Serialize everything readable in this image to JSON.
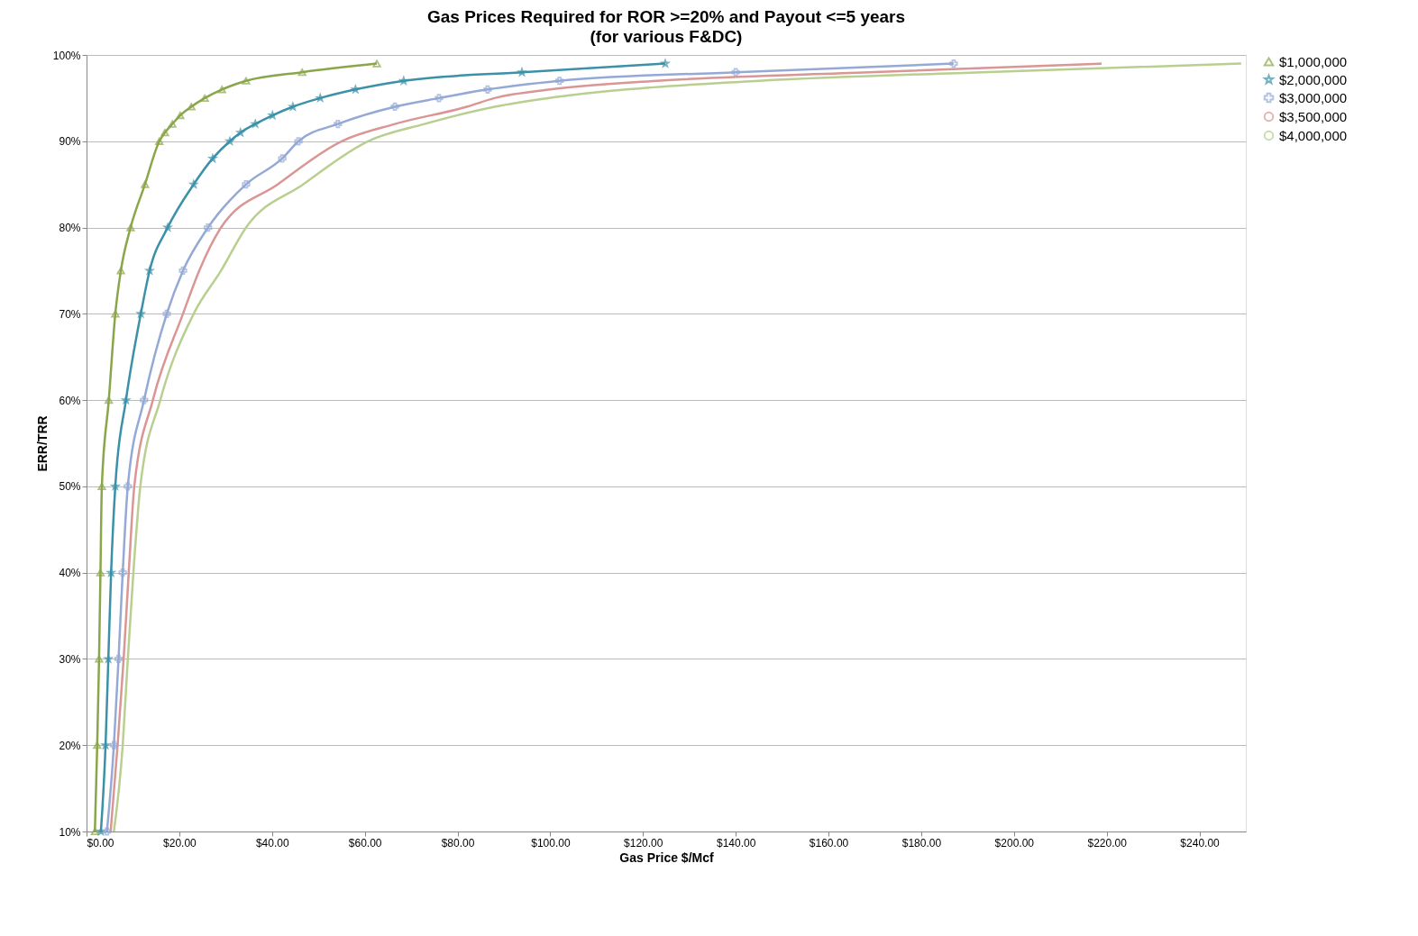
{
  "chart_data": {
    "type": "line",
    "title": "Gas Prices Required for ROR >=20% and Payout <=5 years",
    "subtitle": "(for various F&DC)",
    "xlabel": "Gas Price $/Mcf",
    "ylabel": "ERR/TRR",
    "xlim": [
      0,
      250
    ],
    "ylim": [
      10,
      100
    ],
    "xticks": [
      {
        "value": 0,
        "label": "$0.00"
      },
      {
        "value": 20,
        "label": "$20.00"
      },
      {
        "value": 40,
        "label": "$40.00"
      },
      {
        "value": 60,
        "label": "$60.00"
      },
      {
        "value": 80,
        "label": "$80.00"
      },
      {
        "value": 100,
        "label": "$100.00"
      },
      {
        "value": 120,
        "label": "$120.00"
      },
      {
        "value": 140,
        "label": "$140.00"
      },
      {
        "value": 160,
        "label": "$160.00"
      },
      {
        "value": 180,
        "label": "$180.00"
      },
      {
        "value": 200,
        "label": "$200.00"
      },
      {
        "value": 220,
        "label": "$220.00"
      },
      {
        "value": 240,
        "label": "$240.00"
      }
    ],
    "yticks": [
      {
        "value": 10,
        "label": "10%"
      },
      {
        "value": 20,
        "label": "20%"
      },
      {
        "value": 30,
        "label": "30%"
      },
      {
        "value": 40,
        "label": "40%"
      },
      {
        "value": 50,
        "label": "50%"
      },
      {
        "value": 60,
        "label": "60%"
      },
      {
        "value": 70,
        "label": "70%"
      },
      {
        "value": 80,
        "label": "80%"
      },
      {
        "value": 90,
        "label": "90%"
      },
      {
        "value": 100,
        "label": "100%"
      }
    ],
    "grid": "y",
    "legend": "right",
    "line_style": "solid",
    "series": [
      {
        "name": "$1,000,000",
        "color": "#8aa64a",
        "marker": "triangle",
        "x": [
          1.8,
          2.3,
          2.7,
          3.0,
          3.3,
          4.8,
          6.2,
          7.4,
          9.5,
          12.6,
          15.7,
          16.9,
          18.5,
          20.2,
          22.6,
          25.5,
          29.2,
          34.4,
          46.5,
          62.6
        ],
        "values": [
          10,
          20,
          30,
          40,
          50,
          60,
          70,
          75,
          80,
          85,
          90,
          91,
          92,
          93,
          94,
          95,
          96,
          97,
          98,
          99
        ]
      },
      {
        "name": "$2,000,000",
        "color": "#3a91a8",
        "marker": "star",
        "x": [
          3.1,
          4.1,
          4.7,
          5.3,
          6.2,
          8.5,
          11.7,
          13.6,
          17.5,
          23.1,
          27.2,
          30.9,
          33.2,
          36.4,
          40.1,
          44.5,
          50.4,
          58.0,
          68.4,
          93.9,
          124.8
        ],
        "values": [
          10,
          20,
          30,
          40,
          50,
          60,
          70,
          75,
          80,
          85,
          88,
          90,
          91,
          92,
          93,
          94,
          95,
          96,
          97,
          98,
          99
        ]
      },
      {
        "name": "$3,000,000",
        "color": "#95a9d6",
        "marker": "cross",
        "x": [
          4.4,
          5.9,
          6.9,
          7.8,
          8.9,
          12.4,
          17.3,
          20.8,
          26.2,
          34.4,
          42.2,
          45.7,
          54.2,
          66.5,
          76.0,
          86.5,
          102.0,
          140.0,
          187.0
        ],
        "values": [
          10,
          20,
          30,
          40,
          50,
          60,
          70,
          75,
          80,
          85,
          88,
          90,
          92,
          94,
          95,
          96,
          97,
          98,
          99
        ]
      },
      {
        "name": "$3,500,000",
        "color": "#d99694",
        "marker": "none",
        "x": [
          5.2,
          6.7,
          8.0,
          9.1,
          10.3,
          14.3,
          20.8,
          24.3,
          29.0,
          41.2,
          55.0,
          66.5,
          82.0,
          88.0,
          100.0,
          123.0,
          168.8,
          218.9
        ],
        "values": [
          10,
          20,
          30,
          40,
          50,
          60,
          70,
          75,
          80,
          85,
          90,
          92,
          94,
          95,
          96,
          97,
          98,
          99
        ]
      },
      {
        "name": "$4,000,000",
        "color": "#b9cf8f",
        "marker": "none",
        "x": [
          5.9,
          7.8,
          8.9,
          10.1,
          11.6,
          15.9,
          23.1,
          29.0,
          34.4,
          46.7,
          60.7,
          72.9,
          88.0,
          99.5,
          116.5,
          145.0,
          193.0,
          249.0
        ],
        "values": [
          10,
          20,
          30,
          40,
          50,
          60,
          70,
          75,
          80,
          85,
          90,
          92,
          94,
          95,
          96,
          97,
          98,
          99
        ]
      }
    ]
  }
}
